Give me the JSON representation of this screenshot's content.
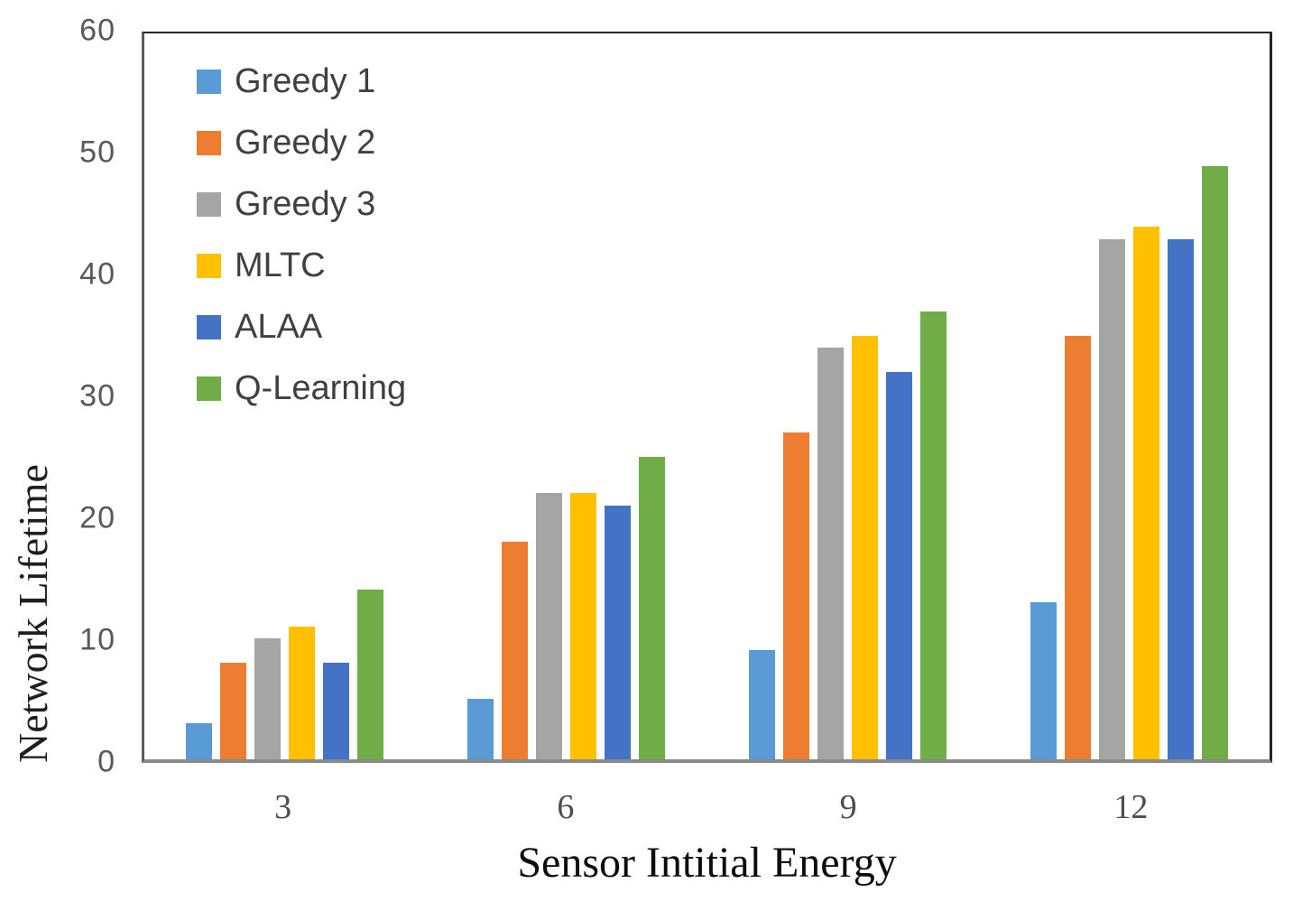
{
  "chart_data": {
    "type": "bar",
    "title": "",
    "xlabel": "Sensor Intitial Energy",
    "ylabel": "Network Lifetime",
    "categories": [
      "3",
      "6",
      "9",
      "12"
    ],
    "series": [
      {
        "name": "Greedy 1",
        "color": "#5B9BD5",
        "values": [
          3,
          5,
          9,
          13
        ]
      },
      {
        "name": "Greedy 2",
        "color": "#ED7D31",
        "values": [
          8,
          18,
          27,
          35
        ]
      },
      {
        "name": "Greedy 3",
        "color": "#A5A5A5",
        "values": [
          10,
          22,
          34,
          43
        ]
      },
      {
        "name": "MLTC",
        "color": "#FFC000",
        "values": [
          11,
          22,
          35,
          44
        ]
      },
      {
        "name": "ALAA",
        "color": "#4472C4",
        "values": [
          8,
          21,
          32,
          43
        ]
      },
      {
        "name": "Q-Learning",
        "color": "#70AD47",
        "values": [
          14,
          25,
          37,
          49
        ]
      }
    ],
    "ylim": [
      0,
      60
    ],
    "y_ticks": [
      0,
      10,
      20,
      30,
      40,
      50,
      60
    ],
    "grid": false,
    "legend_position": "top-left-inside",
    "axis_colors": {
      "frame_dark": "#262626",
      "baseline": "#8a8a8a",
      "tick_text": "#595959",
      "legend_text": "#404040"
    }
  }
}
